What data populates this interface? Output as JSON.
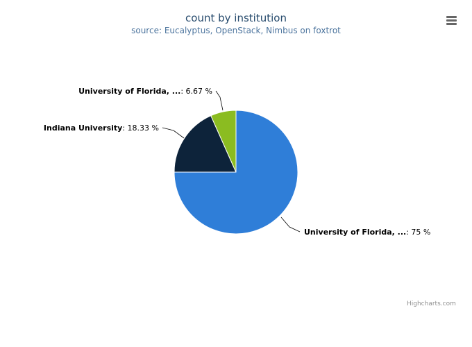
{
  "title": "count by institution",
  "subtitle": "source: Eucalyptus, OpenStack, Nimbus on foxtrot",
  "credits": "Highcharts.com",
  "menu_icon": "hamburger-menu-icon",
  "colors": {
    "title": "#274b6d",
    "subtitle": "#4d759e"
  },
  "chart_data": {
    "type": "pie",
    "title": "count by institution",
    "subtitle": "source: Eucalyptus, OpenStack, Nimbus on foxtrot",
    "slices": [
      {
        "name": "University of Florida, ...",
        "value": 75,
        "label": "75 %",
        "color": "#2f7ed8"
      },
      {
        "name": "Indiana University",
        "value": 18.33,
        "label": "18.33 %",
        "color": "#0d233a"
      },
      {
        "name": "University of Florida, ...",
        "value": 6.67,
        "label": "6.67 %",
        "color": "#8bbc21"
      }
    ]
  }
}
